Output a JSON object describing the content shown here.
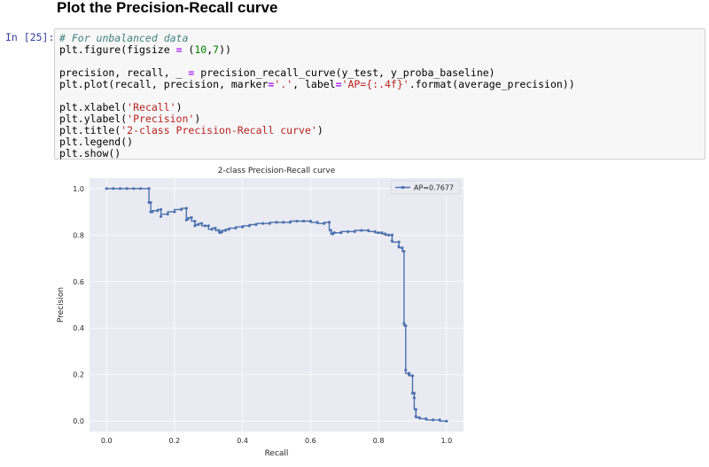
{
  "heading": "Plot the Precision-Recall curve",
  "prompt": "In [25]:",
  "code": {
    "line1_comment": "# For unbalanced data",
    "line2_a": "plt.figure(figsize ",
    "line2_eq": "=",
    "line2_b": " (",
    "line2_n1": "10",
    "line2_c": ",",
    "line2_n2": "7",
    "line2_d": "))",
    "line4_a": "precision, recall, _ ",
    "line4_eq": "=",
    "line4_b": " precision_recall_curve(y_test, y_proba_baseline)",
    "line5_a": "plt.plot(recall, precision, marker",
    "line5_eq1": "=",
    "line5_s1": "'.'",
    "line5_b": ", label",
    "line5_eq2": "=",
    "line5_s2": "'AP={:.4f}'",
    "line5_c": ".format(average_precision))",
    "line7_a": "plt.xlabel(",
    "line7_s": "'Recall'",
    "line7_b": ")",
    "line8_a": "plt.ylabel(",
    "line8_s": "'Precision'",
    "line8_b": ")",
    "line9_a": "plt.title(",
    "line9_s": "'2-class Precision-Recall curve'",
    "line9_b": ")",
    "line10": "plt.legend()",
    "line11": "plt.show()"
  },
  "colors": {
    "plot_bg": "#eaeaf2",
    "grid": "#ffffff",
    "line": "#4c72b0",
    "text": "#262626"
  },
  "chart_data": {
    "type": "line",
    "title": "2-class Precision-Recall curve",
    "xlabel": "Recall",
    "ylabel": "Precision",
    "xlim": [
      -0.05,
      1.05
    ],
    "ylim": [
      -0.045,
      1.045
    ],
    "xticks": [
      "0.0",
      "0.2",
      "0.4",
      "0.6",
      "0.8",
      "1.0"
    ],
    "yticks": [
      "0.0",
      "0.2",
      "0.4",
      "0.6",
      "0.8",
      "1.0"
    ],
    "legend": "AP=0.7677",
    "legend_position": "upper right",
    "grid": true,
    "series": [
      {
        "name": "AP=0.7677",
        "marker": ".",
        "x": [
          0.0,
          0.02,
          0.04,
          0.06,
          0.08,
          0.1,
          0.125,
          0.125,
          0.13,
          0.13,
          0.135,
          0.15,
          0.16,
          0.16,
          0.18,
          0.2,
          0.22,
          0.235,
          0.235,
          0.24,
          0.25,
          0.26,
          0.26,
          0.27,
          0.28,
          0.29,
          0.3,
          0.31,
          0.32,
          0.33,
          0.335,
          0.34,
          0.35,
          0.36,
          0.38,
          0.4,
          0.42,
          0.44,
          0.46,
          0.48,
          0.5,
          0.52,
          0.54,
          0.56,
          0.58,
          0.6,
          0.62,
          0.64,
          0.655,
          0.66,
          0.665,
          0.67,
          0.69,
          0.71,
          0.73,
          0.75,
          0.77,
          0.79,
          0.8,
          0.81,
          0.82,
          0.83,
          0.84,
          0.84,
          0.86,
          0.86,
          0.87,
          0.875,
          0.875,
          0.88,
          0.88,
          0.89,
          0.89,
          0.9,
          0.9,
          0.905,
          0.905,
          0.91,
          0.91,
          0.92,
          0.94,
          0.96,
          0.98,
          1.0
        ],
        "y": [
          1.0,
          1.0,
          1.0,
          1.0,
          1.0,
          1.0,
          1.0,
          0.94,
          0.94,
          0.9,
          0.9,
          0.905,
          0.91,
          0.88,
          0.89,
          0.9,
          0.91,
          0.915,
          0.865,
          0.87,
          0.875,
          0.86,
          0.84,
          0.845,
          0.85,
          0.84,
          0.84,
          0.825,
          0.83,
          0.82,
          0.81,
          0.815,
          0.82,
          0.825,
          0.83,
          0.835,
          0.84,
          0.845,
          0.85,
          0.85,
          0.855,
          0.855,
          0.855,
          0.86,
          0.86,
          0.86,
          0.855,
          0.85,
          0.855,
          0.82,
          0.805,
          0.81,
          0.81,
          0.815,
          0.815,
          0.82,
          0.82,
          0.815,
          0.81,
          0.81,
          0.805,
          0.8,
          0.8,
          0.775,
          0.77,
          0.75,
          0.745,
          0.73,
          0.42,
          0.41,
          0.22,
          0.205,
          0.2,
          0.195,
          0.12,
          0.12,
          0.1,
          0.05,
          0.02,
          0.015,
          0.01,
          0.005,
          0.005,
          0.0
        ]
      }
    ]
  }
}
